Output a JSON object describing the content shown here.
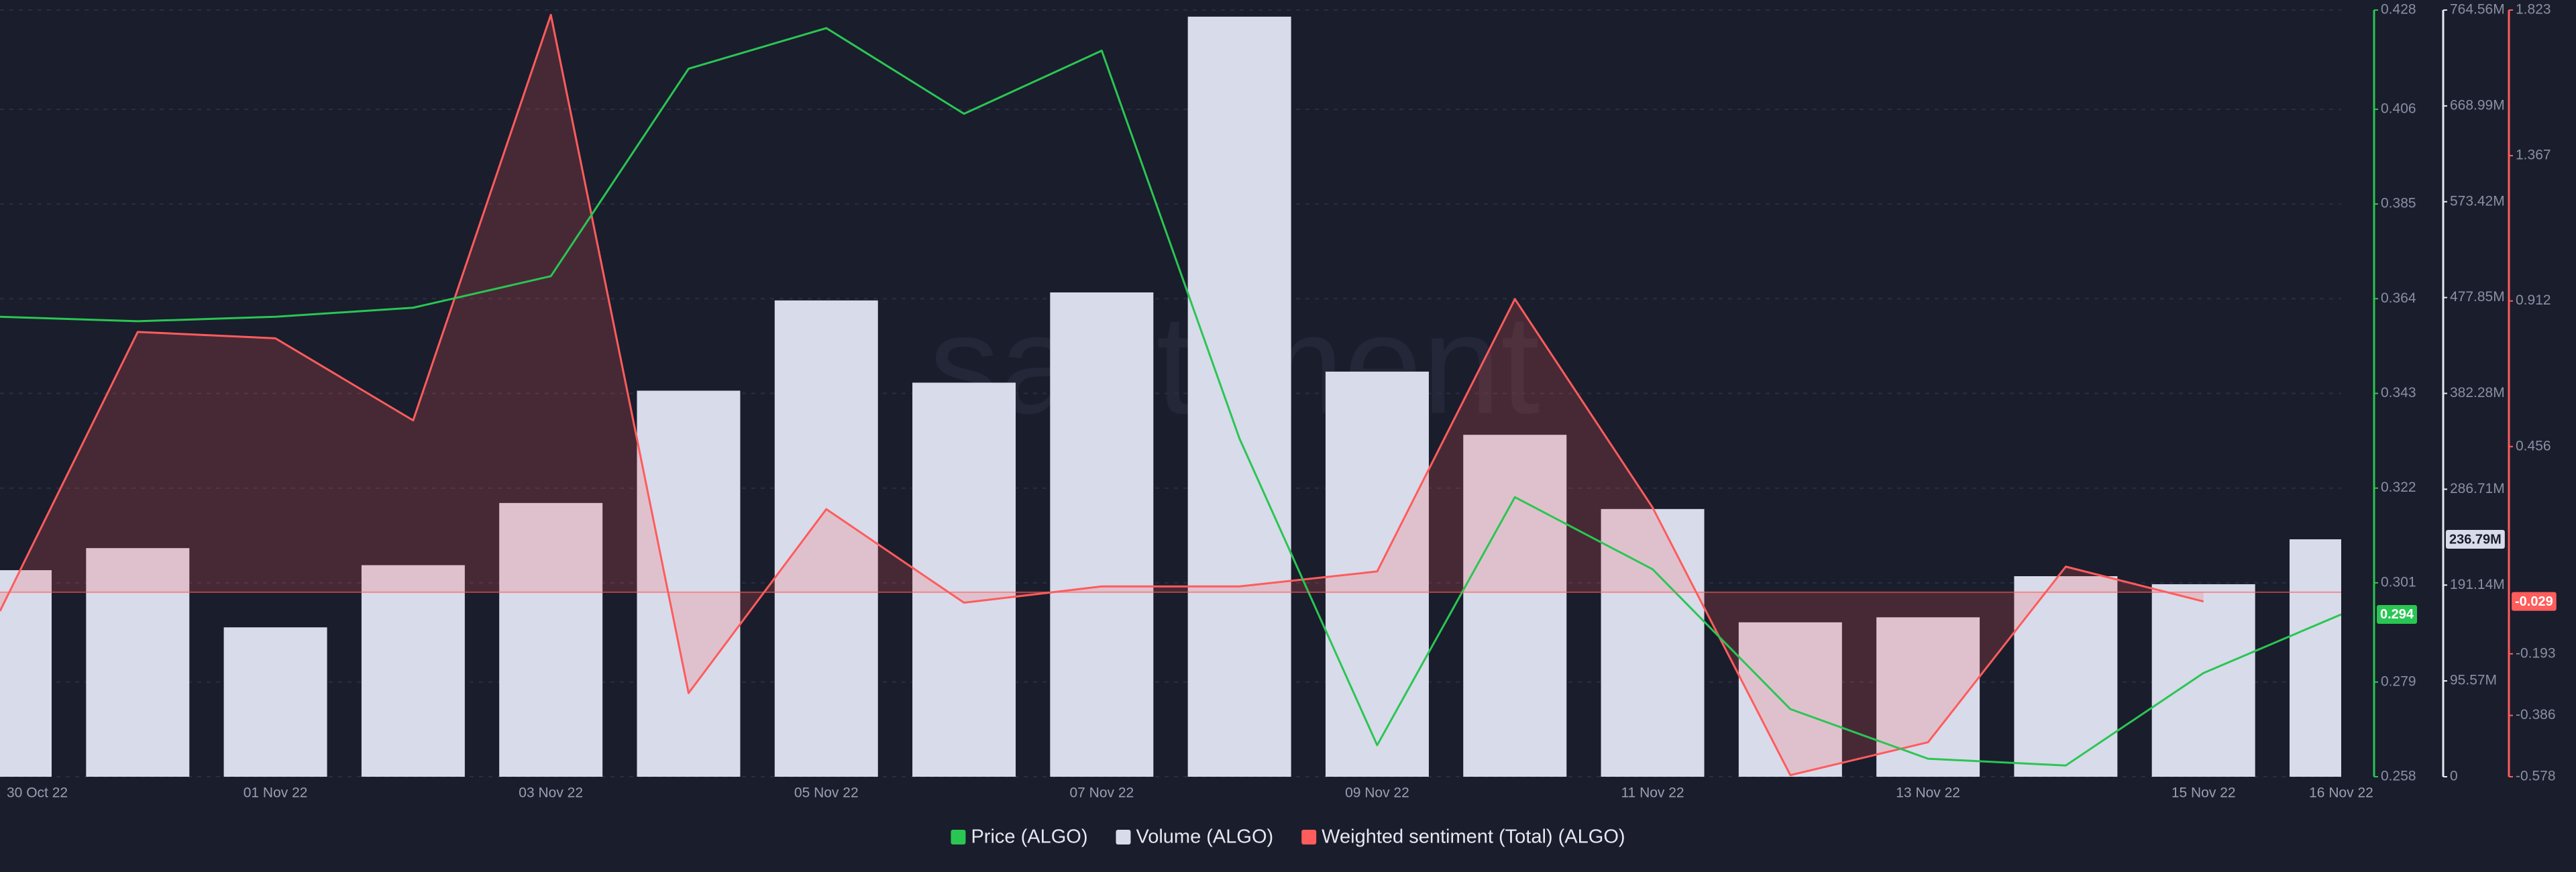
{
  "chart_data": {
    "type": "combo",
    "watermark": "santiment",
    "categories": [
      "30 Oct 22",
      null,
      "01 Nov 22",
      null,
      "03 Nov 22",
      null,
      "05 Nov 22",
      null,
      "07 Nov 22",
      null,
      "09 Nov 22",
      null,
      "11 Nov 22",
      null,
      "13 Nov 22",
      null,
      "15 Nov 22",
      "16 Nov 22"
    ],
    "ylim": [
      0.258,
      0.428
    ],
    "yticks": [
      0.258,
      0.279,
      0.301,
      0.322,
      0.343,
      0.364,
      0.385,
      0.406,
      0.428
    ],
    "y2lim": [
      0,
      764560000
    ],
    "y2ticks": [
      0,
      {
        "value": 95570000,
        "label": "95.57M"
      },
      {
        "value": 191140000,
        "label": "191.14M"
      },
      {
        "value": 286710000,
        "label": "286.71M"
      },
      {
        "value": 382280000,
        "label": "382.28M"
      },
      {
        "value": 477850000,
        "label": "477.85M"
      },
      {
        "value": 573420000,
        "label": "573.42M"
      },
      {
        "value": 668990000,
        "label": "668.99M"
      },
      {
        "value": 764560000,
        "label": "764.56M"
      }
    ],
    "y3lim": [
      -0.578,
      1.823
    ],
    "y3ticks": [
      -0.578,
      -0.386,
      -0.193,
      0.456,
      0.912,
      1.367,
      1.823
    ],
    "grid": true,
    "series": [
      {
        "name": "Price (ALGO)",
        "type": "line",
        "axis": "y",
        "color": "#2ac653",
        "values": [
          0.36,
          0.359,
          0.36,
          0.362,
          0.369,
          0.415,
          0.424,
          0.405,
          0.419,
          0.333,
          0.265,
          0.32,
          0.304,
          0.273,
          0.262,
          0.2605,
          0.281,
          0.294
        ],
        "current_label": "0.294"
      },
      {
        "name": "Volume (ALGO)",
        "type": "bar",
        "axis": "y2",
        "color": "#d8dbea",
        "values": [
          206000000,
          228000000,
          149000000,
          211000000,
          273000000,
          385000000,
          475000000,
          393000000,
          483000000,
          758000000,
          404000000,
          341000000,
          267000000,
          154000000,
          159000000,
          200000000,
          192000000,
          236790000
        ],
        "current_label": "236.79M"
      },
      {
        "name": "Weighted sentiment (Total) (ALGO)",
        "type": "area",
        "axis": "y3",
        "color": "#ff5c5c",
        "values": [
          -0.059,
          0.815,
          0.795,
          0.538,
          1.808,
          -0.316,
          0.26,
          -0.033,
          0.018,
          0.018,
          0.065,
          0.918,
          0.265,
          -0.573,
          -0.47,
          0.08,
          -0.029,
          null
        ],
        "current_label": "-0.029"
      }
    ]
  }
}
